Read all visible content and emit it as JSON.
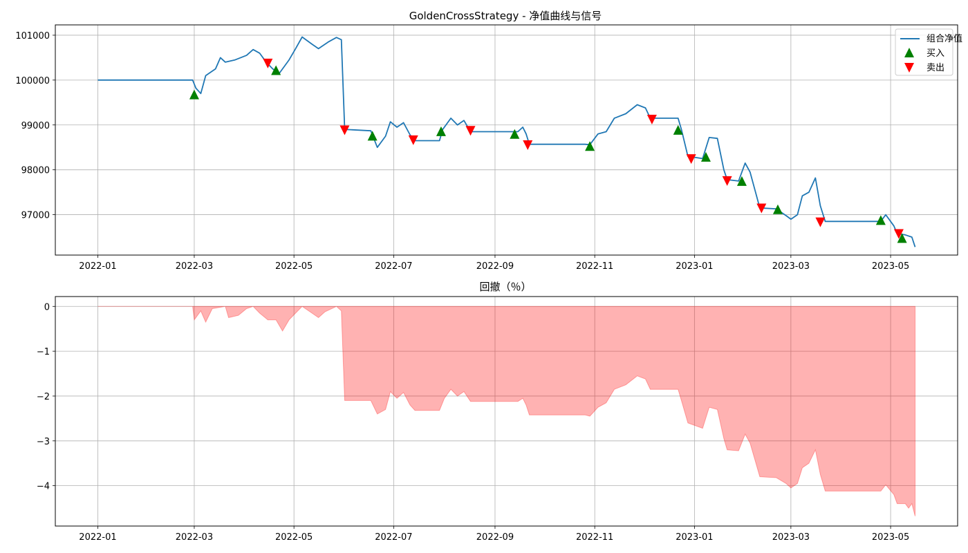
{
  "chart_data": [
    {
      "type": "line",
      "title": "GoldenCrossStrategy - 净值曲线与信号",
      "xlabel": "",
      "ylabel": "",
      "xlim": [
        "2021-12-06",
        "2023-06-11"
      ],
      "ylim": [
        96100,
        101230
      ],
      "x_ticks": [
        "2022-01",
        "2022-03",
        "2022-05",
        "2022-07",
        "2022-09",
        "2022-11",
        "2023-01",
        "2023-03",
        "2023-05"
      ],
      "y_ticks": [
        97000,
        98000,
        99000,
        100000,
        101000
      ],
      "grid": true,
      "legend": "top-right",
      "legend_entries": [
        "组合净值",
        "买入",
        "卖出"
      ],
      "colors": {
        "line": "#1f77b4",
        "buy": "#008000",
        "sell": "#ff0000"
      },
      "series": [
        {
          "name": "组合净值",
          "points": [
            [
              "2022-01-01",
              100000
            ],
            [
              "2022-02-28",
              100000
            ],
            [
              "2022-03-02",
              99820
            ],
            [
              "2022-03-05",
              99700
            ],
            [
              "2022-03-08",
              100100
            ],
            [
              "2022-03-14",
              100250
            ],
            [
              "2022-03-17",
              100500
            ],
            [
              "2022-03-20",
              100400
            ],
            [
              "2022-03-26",
              100450
            ],
            [
              "2022-04-02",
              100550
            ],
            [
              "2022-04-06",
              100680
            ],
            [
              "2022-04-10",
              100600
            ],
            [
              "2022-04-14",
              100400
            ],
            [
              "2022-04-18",
              100250
            ],
            [
              "2022-04-22",
              100150
            ],
            [
              "2022-04-28",
              100450
            ],
            [
              "2022-05-02",
              100700
            ],
            [
              "2022-05-06",
              100960
            ],
            [
              "2022-05-12",
              100800
            ],
            [
              "2022-05-16",
              100700
            ],
            [
              "2022-05-22",
              100850
            ],
            [
              "2022-05-27",
              100950
            ],
            [
              "2022-05-30",
              100900
            ],
            [
              "2022-06-01",
              98900
            ],
            [
              "2022-06-17",
              98870
            ],
            [
              "2022-06-21",
              98500
            ],
            [
              "2022-06-26",
              98750
            ],
            [
              "2022-06-29",
              99070
            ],
            [
              "2022-07-03",
              98950
            ],
            [
              "2022-07-07",
              99050
            ],
            [
              "2022-07-11",
              98780
            ],
            [
              "2022-07-14",
              98650
            ],
            [
              "2022-07-29",
              98650
            ],
            [
              "2022-07-31",
              98900
            ],
            [
              "2022-08-05",
              99150
            ],
            [
              "2022-08-09",
              99000
            ],
            [
              "2022-08-13",
              99100
            ],
            [
              "2022-08-17",
              98850
            ],
            [
              "2022-09-15",
              98850
            ],
            [
              "2022-09-18",
              98950
            ],
            [
              "2022-09-20",
              98800
            ],
            [
              "2022-09-22",
              98570
            ],
            [
              "2022-10-26",
              98570
            ],
            [
              "2022-10-29",
              98560
            ],
            [
              "2022-11-03",
              98800
            ],
            [
              "2022-11-08",
              98850
            ],
            [
              "2022-11-13",
              99150
            ],
            [
              "2022-11-20",
              99250
            ],
            [
              "2022-11-27",
              99450
            ],
            [
              "2022-12-02",
              99380
            ],
            [
              "2022-12-05",
              99150
            ],
            [
              "2022-12-22",
              99150
            ],
            [
              "2022-12-24",
              98900
            ],
            [
              "2022-12-28",
              98300
            ],
            [
              "2023-01-06",
              98250
            ],
            [
              "2023-01-10",
              98720
            ],
            [
              "2023-01-15",
              98700
            ],
            [
              "2023-01-19",
              98000
            ],
            [
              "2023-01-21",
              97780
            ],
            [
              "2023-01-28",
              97750
            ],
            [
              "2023-02-01",
              98150
            ],
            [
              "2023-02-04",
              97950
            ],
            [
              "2023-02-10",
              97150
            ],
            [
              "2023-02-20",
              97130
            ],
            [
              "2023-02-26",
              96980
            ],
            [
              "2023-03-01",
              96900
            ],
            [
              "2023-03-05",
              97000
            ],
            [
              "2023-03-08",
              97420
            ],
            [
              "2023-03-12",
              97500
            ],
            [
              "2023-03-16",
              97820
            ],
            [
              "2023-03-19",
              97200
            ],
            [
              "2023-03-22",
              96850
            ],
            [
              "2023-04-25",
              96850
            ],
            [
              "2023-04-28",
              97000
            ],
            [
              "2023-05-03",
              96750
            ],
            [
              "2023-05-05",
              96580
            ],
            [
              "2023-05-10",
              96550
            ],
            [
              "2023-05-14",
              96500
            ],
            [
              "2023-05-16",
              96280
            ]
          ]
        },
        {
          "name": "买入",
          "marker": "triangle-up",
          "points": [
            [
              "2022-03-01",
              99680
            ],
            [
              "2022-04-20",
              100220
            ],
            [
              "2022-06-18",
              98760
            ],
            [
              "2022-07-30",
              98860
            ],
            [
              "2022-09-13",
              98800
            ],
            [
              "2022-10-29",
              98530
            ],
            [
              "2022-12-22",
              98890
            ],
            [
              "2023-01-08",
              98290
            ],
            [
              "2023-01-30",
              97750
            ],
            [
              "2023-02-21",
              97120
            ],
            [
              "2023-04-25",
              96880
            ],
            [
              "2023-05-08",
              96480
            ]
          ]
        },
        {
          "name": "卖出",
          "marker": "triangle-down",
          "points": [
            [
              "2022-04-15",
              100370
            ],
            [
              "2022-06-01",
              98880
            ],
            [
              "2022-07-13",
              98660
            ],
            [
              "2022-08-17",
              98870
            ],
            [
              "2022-09-21",
              98550
            ],
            [
              "2022-12-06",
              99120
            ],
            [
              "2022-12-30",
              98240
            ],
            [
              "2023-01-21",
              97750
            ],
            [
              "2023-02-11",
              97140
            ],
            [
              "2023-03-19",
              96830
            ],
            [
              "2023-05-06",
              96570
            ]
          ]
        }
      ]
    },
    {
      "type": "area",
      "title": "回撤（％）",
      "xlabel": "",
      "ylabel": "",
      "xlim": [
        "2021-12-06",
        "2023-06-11"
      ],
      "ylim": [
        -4.9,
        0.22
      ],
      "x_ticks": [
        "2022-01",
        "2022-03",
        "2022-05",
        "2022-07",
        "2022-09",
        "2022-11",
        "2023-01",
        "2023-03",
        "2023-05"
      ],
      "y_ticks": [
        0,
        -1,
        -2,
        -3,
        -4
      ],
      "y_tick_labels": [
        "0",
        "−1",
        "−2",
        "−3",
        "−4"
      ],
      "grid": true,
      "colors": {
        "fill": "#ff0000",
        "fill_opacity": 0.3
      },
      "series": [
        {
          "points": [
            [
              "2022-01-01",
              0
            ],
            [
              "2022-02-28",
              0
            ],
            [
              "2022-03-01",
              -0.3
            ],
            [
              "2022-03-05",
              -0.1
            ],
            [
              "2022-03-08",
              -0.35
            ],
            [
              "2022-03-12",
              -0.05
            ],
            [
              "2022-03-20",
              0
            ],
            [
              "2022-03-22",
              -0.25
            ],
            [
              "2022-03-28",
              -0.2
            ],
            [
              "2022-04-02",
              -0.05
            ],
            [
              "2022-04-06",
              0
            ],
            [
              "2022-04-10",
              -0.15
            ],
            [
              "2022-04-15",
              -0.3
            ],
            [
              "2022-04-20",
              -0.3
            ],
            [
              "2022-04-24",
              -0.55
            ],
            [
              "2022-04-28",
              -0.3
            ],
            [
              "2022-05-02",
              -0.15
            ],
            [
              "2022-05-06",
              0
            ],
            [
              "2022-05-12",
              -0.15
            ],
            [
              "2022-05-16",
              -0.25
            ],
            [
              "2022-05-20",
              -0.12
            ],
            [
              "2022-05-27",
              0
            ],
            [
              "2022-05-30",
              -0.1
            ],
            [
              "2022-06-01",
              -2.1
            ],
            [
              "2022-06-17",
              -2.1
            ],
            [
              "2022-06-21",
              -2.4
            ],
            [
              "2022-06-26",
              -2.3
            ],
            [
              "2022-06-29",
              -1.9
            ],
            [
              "2022-07-03",
              -2.05
            ],
            [
              "2022-07-07",
              -1.92
            ],
            [
              "2022-07-11",
              -2.2
            ],
            [
              "2022-07-14",
              -2.32
            ],
            [
              "2022-07-29",
              -2.32
            ],
            [
              "2022-08-01",
              -2.05
            ],
            [
              "2022-08-05",
              -1.85
            ],
            [
              "2022-08-09",
              -2.0
            ],
            [
              "2022-08-13",
              -1.9
            ],
            [
              "2022-08-17",
              -2.12
            ],
            [
              "2022-09-15",
              -2.12
            ],
            [
              "2022-09-18",
              -2.05
            ],
            [
              "2022-09-20",
              -2.2
            ],
            [
              "2022-09-22",
              -2.42
            ],
            [
              "2022-10-26",
              -2.42
            ],
            [
              "2022-10-29",
              -2.45
            ],
            [
              "2022-11-03",
              -2.25
            ],
            [
              "2022-11-08",
              -2.15
            ],
            [
              "2022-11-13",
              -1.85
            ],
            [
              "2022-11-20",
              -1.75
            ],
            [
              "2022-11-27",
              -1.55
            ],
            [
              "2022-12-02",
              -1.62
            ],
            [
              "2022-12-05",
              -1.85
            ],
            [
              "2022-12-22",
              -1.85
            ],
            [
              "2022-12-24",
              -2.1
            ],
            [
              "2022-12-28",
              -2.6
            ],
            [
              "2023-01-06",
              -2.72
            ],
            [
              "2023-01-10",
              -2.25
            ],
            [
              "2023-01-15",
              -2.3
            ],
            [
              "2023-01-19",
              -2.95
            ],
            [
              "2023-01-21",
              -3.2
            ],
            [
              "2023-01-28",
              -3.22
            ],
            [
              "2023-02-01",
              -2.85
            ],
            [
              "2023-02-04",
              -3.05
            ],
            [
              "2023-02-10",
              -3.8
            ],
            [
              "2023-02-20",
              -3.82
            ],
            [
              "2023-02-26",
              -3.95
            ],
            [
              "2023-03-01",
              -4.05
            ],
            [
              "2023-03-05",
              -3.95
            ],
            [
              "2023-03-08",
              -3.6
            ],
            [
              "2023-03-12",
              -3.5
            ],
            [
              "2023-03-16",
              -3.2
            ],
            [
              "2023-03-19",
              -3.75
            ],
            [
              "2023-03-22",
              -4.12
            ],
            [
              "2023-04-25",
              -4.12
            ],
            [
              "2023-04-28",
              -3.98
            ],
            [
              "2023-05-03",
              -4.2
            ],
            [
              "2023-05-05",
              -4.4
            ],
            [
              "2023-05-10",
              -4.4
            ],
            [
              "2023-05-12",
              -4.5
            ],
            [
              "2023-05-14",
              -4.4
            ],
            [
              "2023-05-16",
              -4.68
            ]
          ]
        }
      ]
    }
  ]
}
